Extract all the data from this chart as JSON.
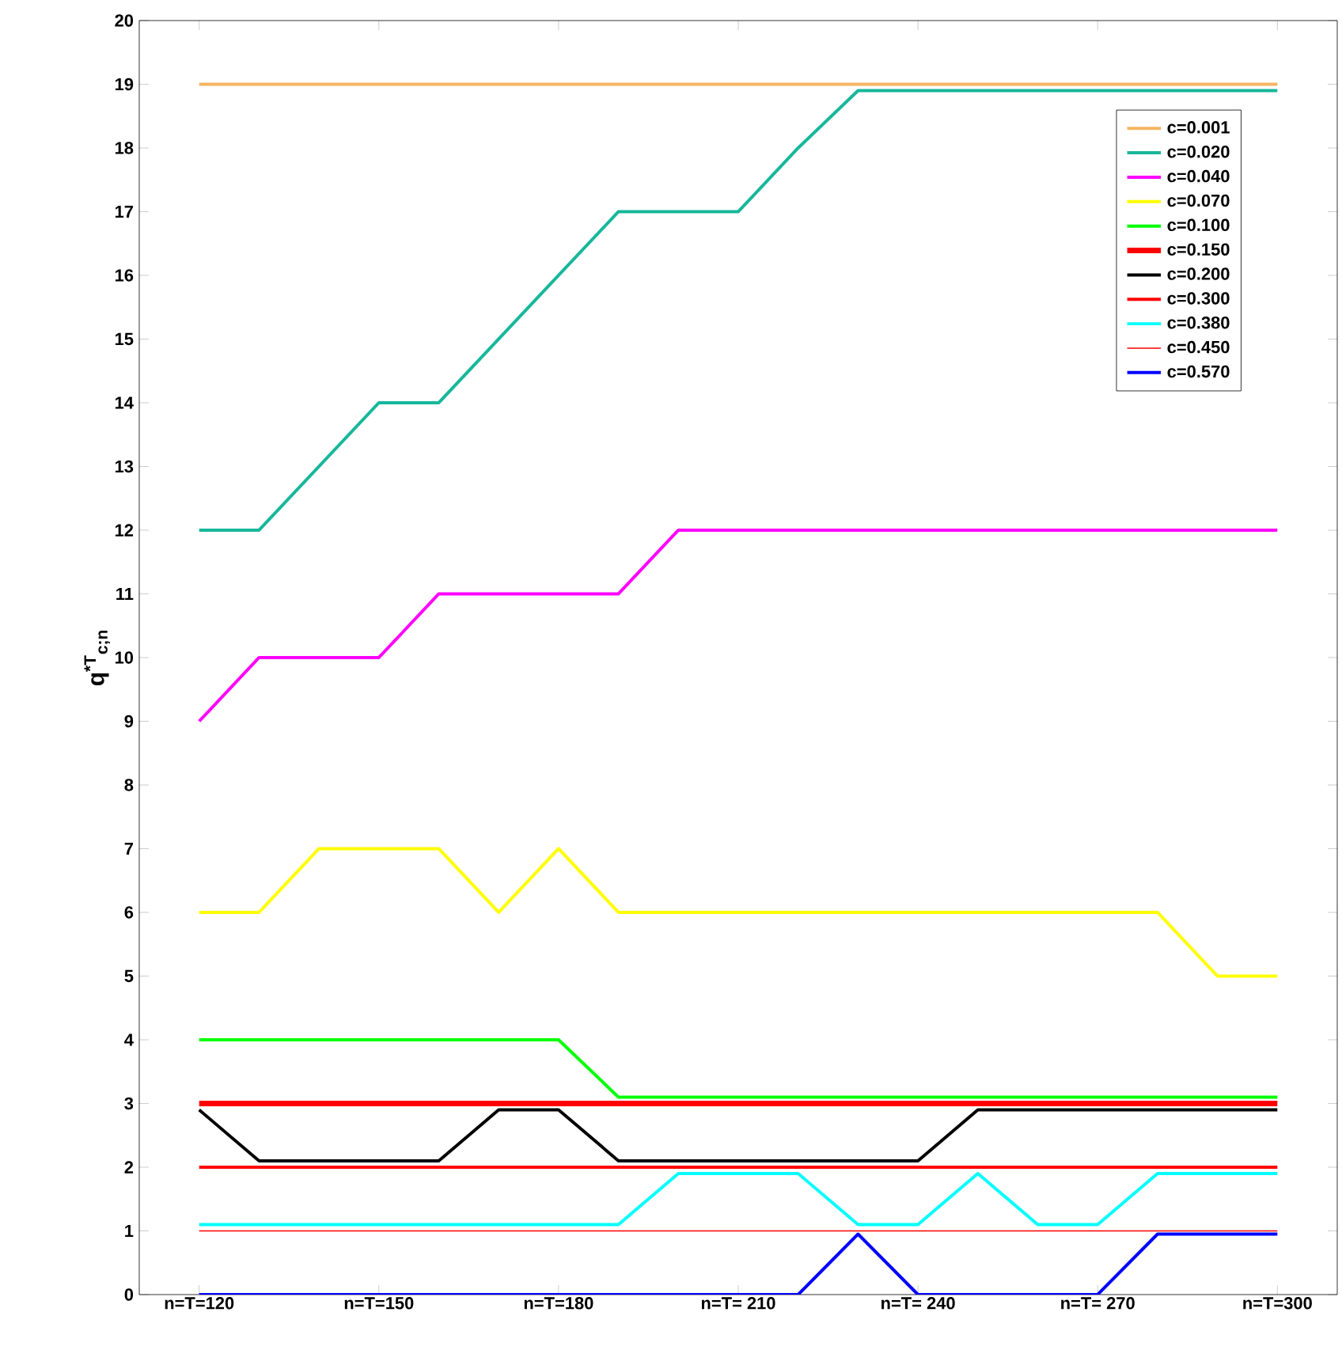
{
  "chart_data": {
    "type": "line",
    "ylabel": "q$^{*T}$$_{c;n}$",
    "x": [
      120,
      130,
      140,
      150,
      160,
      170,
      180,
      190,
      200,
      210,
      220,
      230,
      240,
      250,
      260,
      270,
      280,
      290,
      300
    ],
    "xlim": [
      110,
      310
    ],
    "xticks": [
      {
        "value": 120,
        "label": "n=T=120"
      },
      {
        "value": 150,
        "label": "n=T=150"
      },
      {
        "value": 180,
        "label": "n=T=180"
      },
      {
        "value": 210,
        "label": "n=T= 210"
      },
      {
        "value": 240,
        "label": "n=T= 240"
      },
      {
        "value": 270,
        "label": "n=T= 270"
      },
      {
        "value": 300,
        "label": "n=T=300"
      }
    ],
    "ylim": [
      0,
      20
    ],
    "yticks": [
      0,
      1,
      2,
      3,
      4,
      5,
      6,
      7,
      8,
      9,
      10,
      11,
      12,
      13,
      14,
      15,
      16,
      17,
      18,
      19,
      20
    ],
    "grid": false,
    "legend": "top right",
    "marker": "none",
    "line_style": "solid",
    "series": [
      {
        "name": "c=0.001",
        "color": "#f5b461",
        "values": [
          19,
          19,
          19,
          19,
          19,
          19,
          19,
          19,
          19,
          19,
          19,
          19,
          19,
          19,
          19,
          19,
          19,
          19,
          19
        ]
      },
      {
        "name": "c=0.020",
        "color": "#17b79a",
        "values": [
          12,
          12,
          13,
          14,
          14,
          15,
          16,
          17,
          17,
          17,
          18,
          18.9,
          18.9,
          18.9,
          18.9,
          18.9,
          18.9,
          18.9,
          18.9
        ]
      },
      {
        "name": "c=0.040",
        "color": "#ff00ff",
        "values": [
          9,
          10,
          10,
          10,
          11,
          11,
          11,
          11,
          12,
          12,
          12,
          12,
          12,
          12,
          12,
          12,
          12,
          12,
          12
        ]
      },
      {
        "name": "c=0.070",
        "color": "#ffff00",
        "values": [
          6,
          6,
          7,
          7,
          7,
          6,
          7,
          6,
          6,
          6,
          6,
          6,
          6,
          6,
          6,
          6,
          6,
          5,
          5
        ]
      },
      {
        "name": "c=0.100",
        "color": "#00ff00",
        "values": [
          4,
          4,
          4,
          4,
          4,
          4,
          4,
          3.1,
          3.1,
          3.1,
          3.1,
          3.1,
          3.1,
          3.1,
          3.1,
          3.1,
          3.1,
          3.1,
          3.1
        ]
      },
      {
        "name": "c=0.150",
        "color": "#ff0000",
        "values": [
          3,
          3,
          3,
          3,
          3,
          3,
          3,
          3,
          3,
          3,
          3,
          3,
          3,
          3,
          3,
          3,
          3,
          3,
          3
        ]
      },
      {
        "name": "c=0.200",
        "color": "#000000",
        "values": [
          2.9,
          2.1,
          2.1,
          2.1,
          2.1,
          2.9,
          2.9,
          2.1,
          2.1,
          2.1,
          2.1,
          2.1,
          2.1,
          2.9,
          2.9,
          2.9,
          2.9,
          2.9,
          2.9
        ]
      },
      {
        "name": "c=0.300",
        "color": "#ff0000",
        "values": [
          2,
          2,
          2,
          2,
          2,
          2,
          2,
          2,
          2,
          2,
          2,
          2,
          2,
          2,
          2,
          2,
          2,
          2,
          2
        ]
      },
      {
        "name": "c=0.380",
        "color": "#00ffff",
        "values": [
          1.1,
          1.1,
          1.1,
          1.1,
          1.1,
          1.1,
          1.1,
          1.1,
          1.9,
          1.9,
          1.9,
          1.1,
          1.1,
          1.9,
          1.1,
          1.1,
          1.9,
          1.9,
          1.9
        ]
      },
      {
        "name": "c=0.450",
        "color": "#ff0000",
        "values": [
          1,
          1,
          1,
          1,
          1,
          1,
          1,
          1,
          1,
          1,
          1,
          1,
          1,
          1,
          1,
          1,
          1,
          1,
          1
        ]
      },
      {
        "name": "c=0.570",
        "color": "#0000ff",
        "values": [
          0,
          0,
          0,
          0,
          0,
          0,
          0,
          0,
          0,
          0,
          0,
          0.95,
          0,
          0,
          0,
          0,
          0.95,
          0.95,
          0.95
        ]
      }
    ]
  }
}
